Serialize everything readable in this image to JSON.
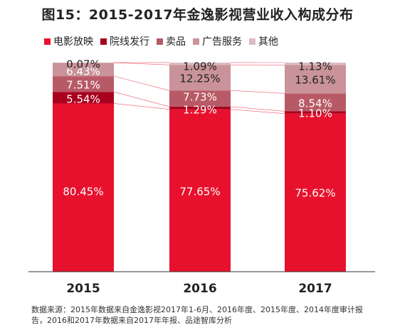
{
  "title": "图15：2015-2017年金逸影视营业收入构成分布",
  "source_note": "数据来源：2015年数据来自金逸影视2017年1-6月、2016年度、2015年度、2014年度审计报告，2016和2017年数据来自2017年年报、品途智库分析",
  "colors": {
    "电影放映": "#e8112d",
    "院线发行": "#a8001e",
    "卖品": "#b85a66",
    "广告服务": "#c99399",
    "其他": "#ddbcc1"
  },
  "chart_data": {
    "type": "bar",
    "stacked": true,
    "categories": [
      "2015",
      "2016",
      "2017"
    ],
    "legend_position": "top",
    "grid": false,
    "ylim": [
      0,
      100
    ],
    "series": [
      {
        "name": "电影放映",
        "values": [
          80.45,
          77.65,
          75.62
        ],
        "labels": [
          "80.45%",
          "77.65%",
          "75.62%"
        ]
      },
      {
        "name": "院线发行",
        "values": [
          5.54,
          1.29,
          1.1
        ],
        "labels": [
          "5.54%",
          "1.29%",
          "1.10%"
        ]
      },
      {
        "name": "卖品",
        "values": [
          7.51,
          7.73,
          8.54
        ],
        "labels": [
          "7.51%",
          "7.73%",
          "8.54%"
        ]
      },
      {
        "name": "广告服务",
        "values": [
          6.43,
          12.25,
          13.61
        ],
        "labels": [
          "6.43%",
          "12.25%",
          "13.61%"
        ]
      },
      {
        "name": "其他",
        "values": [
          0.07,
          1.09,
          1.13
        ],
        "labels": [
          "0.07%",
          "1.09%",
          "1.13%"
        ]
      }
    ]
  }
}
